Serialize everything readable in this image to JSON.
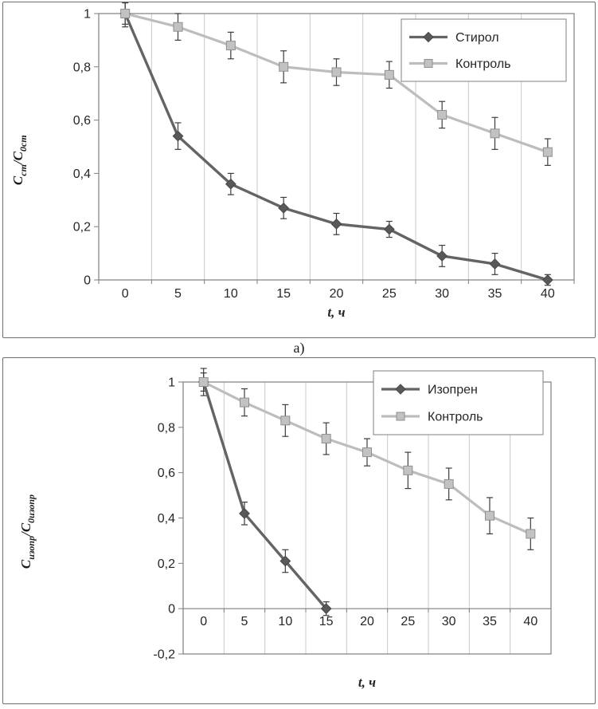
{
  "captions": {
    "a": "а)"
  },
  "chart_data": [
    {
      "type": "line",
      "xlabel": "t, ч",
      "ylabel": "Cст/C0ст",
      "ylabel_parts": [
        {
          "t": "C"
        },
        {
          "s": "ст"
        },
        {
          "t": "/C"
        },
        {
          "s": "0ст"
        }
      ],
      "x": [
        0,
        5,
        10,
        15,
        20,
        25,
        30,
        35,
        40
      ],
      "x_tick_labels": [
        "0",
        "5",
        "10",
        "15",
        "20",
        "25",
        "30",
        "35",
        "40"
      ],
      "ylim": [
        0,
        1
      ],
      "y_ticks": [
        {
          "v": 0,
          "label": "0"
        },
        {
          "v": 0.2,
          "label": "0,2"
        },
        {
          "v": 0.4,
          "label": "0,4"
        },
        {
          "v": 0.6,
          "label": "0,6"
        },
        {
          "v": 0.8,
          "label": "0,8"
        },
        {
          "v": 1,
          "label": "1"
        }
      ],
      "grid": "vertical",
      "legend_position": "top-right",
      "series": [
        {
          "name": "Стирол",
          "marker": "diamond",
          "color": "#646464",
          "marker_color": "#595959",
          "values": [
            1,
            0.54,
            0.36,
            0.27,
            0.21,
            0.19,
            0.09,
            0.06,
            0
          ],
          "errors": [
            0.04,
            0.05,
            0.04,
            0.04,
            0.04,
            0.03,
            0.04,
            0.04,
            0.02
          ]
        },
        {
          "name": "Контроль",
          "marker": "square",
          "color": "#bdbdbd",
          "marker_color": "#c2c2c2",
          "values": [
            1,
            0.95,
            0.88,
            0.8,
            0.78,
            0.77,
            0.62,
            0.55,
            0.48
          ],
          "errors": [
            0.05,
            0.05,
            0.05,
            0.06,
            0.05,
            0.05,
            0.05,
            0.06,
            0.05
          ]
        }
      ]
    },
    {
      "type": "line",
      "xlabel": "t, ч",
      "ylabel": "Cизопр/C0изопр",
      "ylabel_parts": [
        {
          "t": "C"
        },
        {
          "s": "изопр"
        },
        {
          "t": "/C"
        },
        {
          "s": "0изопр"
        }
      ],
      "x": [
        0,
        5,
        10,
        15,
        20,
        25,
        30,
        35,
        40
      ],
      "x_tick_labels": [
        "0",
        "5",
        "10",
        "15",
        "20",
        "25",
        "30",
        "35",
        "40"
      ],
      "ylim": [
        -0.2,
        1
      ],
      "y_ticks": [
        {
          "v": -0.2,
          "label": "-0,2"
        },
        {
          "v": 0,
          "label": "0"
        },
        {
          "v": 0.2,
          "label": "0,2"
        },
        {
          "v": 0.4,
          "label": "0,4"
        },
        {
          "v": 0.6,
          "label": "0,6"
        },
        {
          "v": 0.8,
          "label": "0,8"
        },
        {
          "v": 1,
          "label": "1"
        }
      ],
      "grid": "vertical",
      "legend_position": "top-right",
      "series": [
        {
          "name": "Изопрен",
          "marker": "diamond",
          "color": "#646464",
          "marker_color": "#595959",
          "values": [
            1,
            0.42,
            0.21,
            0,
            null,
            null,
            null,
            null,
            null
          ],
          "errors": [
            0.06,
            0.05,
            0.05,
            0.03
          ]
        },
        {
          "name": "Контроль",
          "marker": "square",
          "color": "#bdbdbd",
          "marker_color": "#c2c2c2",
          "values": [
            1,
            0.91,
            0.83,
            0.75,
            0.69,
            0.61,
            0.55,
            0.41,
            0.33
          ],
          "errors": [
            0.04,
            0.06,
            0.07,
            0.07,
            0.06,
            0.08,
            0.07,
            0.08,
            0.07
          ]
        }
      ]
    }
  ]
}
